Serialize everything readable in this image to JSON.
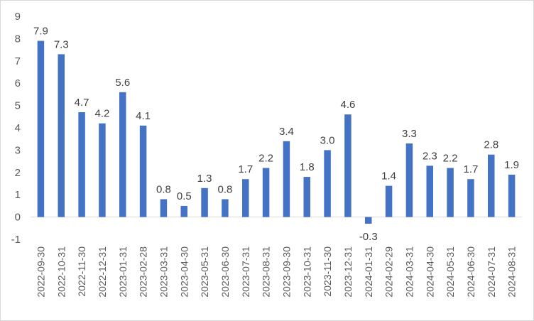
{
  "chart_data": {
    "type": "bar",
    "title": "",
    "xlabel": "",
    "ylabel": "",
    "ylim": [
      -1,
      9
    ],
    "yticks": [
      -1,
      0,
      1,
      2,
      3,
      4,
      5,
      6,
      7,
      8,
      9
    ],
    "grid": false,
    "legend": "none",
    "bar_color": "#4472C4",
    "categories": [
      "2022-09-30",
      "2022-10-31",
      "2022-11-30",
      "2022-12-31",
      "2023-01-31",
      "2023-02-28",
      "2023-03-31",
      "2023-04-30",
      "2023-05-31",
      "2023-06-30",
      "2023-07-31",
      "2023-08-31",
      "2023-09-30",
      "2023-10-31",
      "2023-11-30",
      "2023-12-31",
      "2024-01-31",
      "2024-02-29",
      "2024-03-31",
      "2024-04-30",
      "2024-05-31",
      "2024-06-30",
      "2024-07-31",
      "2024-08-31"
    ],
    "values": [
      7.9,
      7.3,
      4.7,
      4.2,
      5.6,
      4.1,
      0.8,
      0.5,
      1.3,
      0.8,
      1.7,
      2.2,
      3.4,
      1.8,
      3.0,
      4.6,
      -0.3,
      1.4,
      3.3,
      2.3,
      2.2,
      1.7,
      2.8,
      1.9
    ],
    "value_labels": [
      "7.9",
      "7.3",
      "4.7",
      "4.2",
      "5.6",
      "4.1",
      "0.8",
      "0.5",
      "1.3",
      "0.8",
      "1.7",
      "2.2",
      "3.4",
      "1.8",
      "3.0",
      "4.6",
      "-0.3",
      "1.4",
      "3.3",
      "2.3",
      "2.2",
      "1.7",
      "2.8",
      "1.9"
    ]
  }
}
